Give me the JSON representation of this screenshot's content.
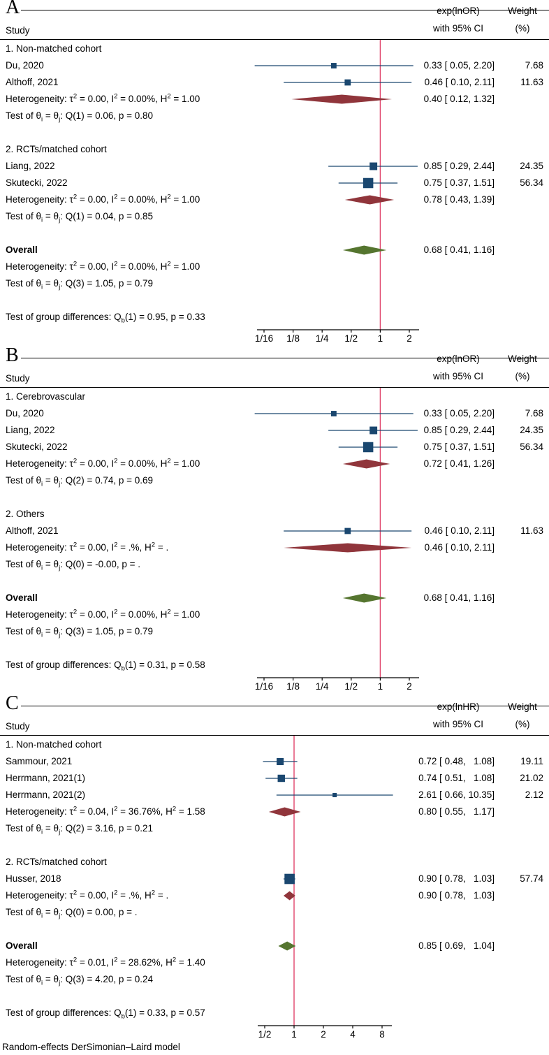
{
  "figure": {
    "footer": "Random-effects DerSimonian–Laird model"
  },
  "colors": {
    "marker": "#1a476f",
    "ci_line": "#1a476f",
    "subgroup_diamond": "#90353b",
    "overall_diamond": "#55752f",
    "ref_line": "#e0436a",
    "axis": "#000000",
    "text": "#000000",
    "background": "#ffffff"
  },
  "chart_data": [
    {
      "type": "forest",
      "panel": "A",
      "effect_measure": "exp(lnOR)",
      "headers": {
        "study": "Study",
        "effect_line1": "exp(lnOR)",
        "effect_line2": "with 95% CI",
        "weight_line1": "Weight",
        "weight_line2": "(%)"
      },
      "axis": {
        "scale": "log2",
        "ref_value": 1,
        "ticks": [
          {
            "label": "1/16",
            "value": 0.0625
          },
          {
            "label": "1/8",
            "value": 0.125
          },
          {
            "label": "1/4",
            "value": 0.25
          },
          {
            "label": "1/2",
            "value": 0.5
          },
          {
            "label": "1",
            "value": 1
          },
          {
            "label": "2",
            "value": 2
          }
        ]
      },
      "rows": [
        {
          "kind": "group",
          "text": "1. Non-matched cohort"
        },
        {
          "kind": "study",
          "name": "Du, 2020",
          "est": 0.33,
          "lo": 0.05,
          "hi": 2.2,
          "effect_text": "0.33 [ 0.05, 2.20]",
          "weight": 7.68,
          "weight_text": "7.68"
        },
        {
          "kind": "study",
          "name": "Althoff, 2021",
          "est": 0.46,
          "lo": 0.1,
          "hi": 2.11,
          "effect_text": "0.46 [ 0.10, 2.11]",
          "weight": 11.63,
          "weight_text": "11.63"
        },
        {
          "kind": "summary",
          "diamond": "subgroup",
          "text": "Heterogeneity: τ^{2} = 0.00, I^{2} = 0.00%, H^{2} = 1.00",
          "est": 0.4,
          "lo": 0.12,
          "hi": 1.32,
          "effect_text": "0.40 [ 0.12, 1.32]"
        },
        {
          "kind": "note",
          "text": "Test of θ_{i} = θ_{j}: Q(1) = 0.06, p = 0.80"
        },
        {
          "kind": "spacer"
        },
        {
          "kind": "group",
          "text": "2. RCTs/matched cohort"
        },
        {
          "kind": "study",
          "name": "Liang, 2022",
          "est": 0.85,
          "lo": 0.29,
          "hi": 2.44,
          "effect_text": "0.85 [ 0.29, 2.44]",
          "weight": 24.35,
          "weight_text": "24.35"
        },
        {
          "kind": "study",
          "name": "Skutecki, 2022",
          "est": 0.75,
          "lo": 0.37,
          "hi": 1.51,
          "effect_text": "0.75 [ 0.37, 1.51]",
          "weight": 56.34,
          "weight_text": "56.34"
        },
        {
          "kind": "summary",
          "diamond": "subgroup",
          "text": "Heterogeneity: τ^{2} = 0.00, I^{2} = 0.00%, H^{2} = 1.00",
          "est": 0.78,
          "lo": 0.43,
          "hi": 1.39,
          "effect_text": "0.78 [ 0.43, 1.39]"
        },
        {
          "kind": "note",
          "text": "Test of θ_{i} = θ_{j}: Q(1) = 0.04, p = 0.85"
        },
        {
          "kind": "spacer"
        },
        {
          "kind": "overall",
          "diamond": "overall",
          "text": "Overall",
          "est": 0.68,
          "lo": 0.41,
          "hi": 1.16,
          "effect_text": "0.68 [ 0.41, 1.16]"
        },
        {
          "kind": "note",
          "text": "Heterogeneity: τ^{2} = 0.00, I^{2} = 0.00%, H^{2} = 1.00"
        },
        {
          "kind": "note",
          "text": "Test of θ_{i} = θ_{j}: Q(3) = 1.05, p = 0.79"
        },
        {
          "kind": "spacer"
        },
        {
          "kind": "note",
          "text": "Test of group differences: Q_{b}(1) = 0.95, p = 0.33"
        }
      ]
    },
    {
      "type": "forest",
      "panel": "B",
      "effect_measure": "exp(lnOR)",
      "headers": {
        "study": "Study",
        "effect_line1": "exp(lnOR)",
        "effect_line2": "with 95% CI",
        "weight_line1": "Weight",
        "weight_line2": "(%)"
      },
      "axis": {
        "scale": "log2",
        "ref_value": 1,
        "ticks": [
          {
            "label": "1/16",
            "value": 0.0625
          },
          {
            "label": "1/8",
            "value": 0.125
          },
          {
            "label": "1/4",
            "value": 0.25
          },
          {
            "label": "1/2",
            "value": 0.5
          },
          {
            "label": "1",
            "value": 1
          },
          {
            "label": "2",
            "value": 2
          }
        ]
      },
      "rows": [
        {
          "kind": "group",
          "text": "1. Cerebrovascular"
        },
        {
          "kind": "study",
          "name": "Du, 2020",
          "est": 0.33,
          "lo": 0.05,
          "hi": 2.2,
          "effect_text": "0.33 [ 0.05, 2.20]",
          "weight": 7.68,
          "weight_text": "7.68"
        },
        {
          "kind": "study",
          "name": "Liang, 2022",
          "est": 0.85,
          "lo": 0.29,
          "hi": 2.44,
          "effect_text": "0.85 [ 0.29, 2.44]",
          "weight": 24.35,
          "weight_text": "24.35"
        },
        {
          "kind": "study",
          "name": "Skutecki, 2022",
          "est": 0.75,
          "lo": 0.37,
          "hi": 1.51,
          "effect_text": "0.75 [ 0.37, 1.51]",
          "weight": 56.34,
          "weight_text": "56.34"
        },
        {
          "kind": "summary",
          "diamond": "subgroup",
          "text": "Heterogeneity: τ^{2} = 0.00, I^{2} = 0.00%, H^{2} = 1.00",
          "est": 0.72,
          "lo": 0.41,
          "hi": 1.26,
          "effect_text": "0.72 [ 0.41, 1.26]"
        },
        {
          "kind": "note",
          "text": "Test of θ_{i} = θ_{j}: Q(2) = 0.74, p = 0.69"
        },
        {
          "kind": "spacer"
        },
        {
          "kind": "group",
          "text": "2. Others"
        },
        {
          "kind": "study",
          "name": "Althoff, 2021",
          "est": 0.46,
          "lo": 0.1,
          "hi": 2.11,
          "effect_text": "0.46 [ 0.10, 2.11]",
          "weight": 11.63,
          "weight_text": "11.63"
        },
        {
          "kind": "summary",
          "diamond": "subgroup",
          "text": "Heterogeneity: τ^{2} = 0.00, I^{2} = .%, H^{2} = .",
          "est": 0.46,
          "lo": 0.1,
          "hi": 2.11,
          "effect_text": "0.46 [ 0.10, 2.11]"
        },
        {
          "kind": "note",
          "text": "Test of θ_{i} = θ_{j}: Q(0) = -0.00, p = ."
        },
        {
          "kind": "spacer"
        },
        {
          "kind": "overall",
          "diamond": "overall",
          "text": "Overall",
          "est": 0.68,
          "lo": 0.41,
          "hi": 1.16,
          "effect_text": "0.68 [ 0.41, 1.16]"
        },
        {
          "kind": "note",
          "text": "Heterogeneity: τ^{2} = 0.00, I^{2} = 0.00%, H^{2} = 1.00"
        },
        {
          "kind": "note",
          "text": "Test of θ_{i} = θ_{j}: Q(3) = 1.05, p = 0.79"
        },
        {
          "kind": "spacer"
        },
        {
          "kind": "note",
          "text": "Test of group differences: Q_{b}(1) = 0.31, p = 0.58"
        }
      ]
    },
    {
      "type": "forest",
      "panel": "C",
      "effect_measure": "exp(lnHR)",
      "headers": {
        "study": "Study",
        "effect_line1": "exp(lnHR)",
        "effect_line2": "with 95% CI",
        "weight_line1": "Weight",
        "weight_line2": "(%)"
      },
      "axis": {
        "scale": "log2",
        "ref_value": 1,
        "ticks": [
          {
            "label": "1/2",
            "value": 0.5
          },
          {
            "label": "1",
            "value": 1
          },
          {
            "label": "2",
            "value": 2
          },
          {
            "label": "4",
            "value": 4
          },
          {
            "label": "8",
            "value": 8
          }
        ]
      },
      "rows": [
        {
          "kind": "group",
          "text": "1. Non-matched cohort"
        },
        {
          "kind": "study",
          "name": "Sammour, 2021",
          "est": 0.72,
          "lo": 0.48,
          "hi": 1.08,
          "effect_text": "0.72 [ 0.48,   1.08]",
          "weight": 19.11,
          "weight_text": "19.11"
        },
        {
          "kind": "study",
          "name": "Herrmann, 2021(1)",
          "est": 0.74,
          "lo": 0.51,
          "hi": 1.08,
          "effect_text": "0.74 [ 0.51,   1.08]",
          "weight": 21.02,
          "weight_text": "21.02"
        },
        {
          "kind": "study",
          "name": "Herrmann, 2021(2)",
          "est": 2.61,
          "lo": 0.66,
          "hi": 10.35,
          "effect_text": "2.61 [ 0.66, 10.35]",
          "weight": 2.12,
          "weight_text": "2.12"
        },
        {
          "kind": "summary",
          "diamond": "subgroup",
          "text": "Heterogeneity: τ^{2} = 0.04, I^{2} = 36.76%, H^{2} = 1.58",
          "est": 0.8,
          "lo": 0.55,
          "hi": 1.17,
          "effect_text": "0.80 [ 0.55,   1.17]"
        },
        {
          "kind": "note",
          "text": "Test of θ_{i} = θ_{j}: Q(2) = 3.16, p = 0.21"
        },
        {
          "kind": "spacer"
        },
        {
          "kind": "group",
          "text": "2. RCTs/matched cohort"
        },
        {
          "kind": "study",
          "name": "Husser, 2018",
          "est": 0.9,
          "lo": 0.78,
          "hi": 1.03,
          "effect_text": "0.90 [ 0.78,   1.03]",
          "weight": 57.74,
          "weight_text": "57.74"
        },
        {
          "kind": "summary",
          "diamond": "subgroup",
          "text": "Heterogeneity: τ^{2} = 0.00, I^{2} = .%, H^{2} = .",
          "est": 0.9,
          "lo": 0.78,
          "hi": 1.03,
          "effect_text": "0.90 [ 0.78,   1.03]"
        },
        {
          "kind": "note",
          "text": "Test of θ_{i} = θ_{j}: Q(0) = 0.00, p = ."
        },
        {
          "kind": "spacer"
        },
        {
          "kind": "overall",
          "diamond": "overall",
          "text": "Overall",
          "est": 0.85,
          "lo": 0.69,
          "hi": 1.04,
          "effect_text": "0.85 [ 0.69,   1.04]"
        },
        {
          "kind": "note",
          "text": "Heterogeneity: τ^{2} = 0.01, I^{2} = 28.62%, H^{2} = 1.40"
        },
        {
          "kind": "note",
          "text": "Test of θ_{i} = θ_{j}: Q(3) = 4.20, p = 0.24"
        },
        {
          "kind": "spacer"
        },
        {
          "kind": "note",
          "text": "Test of group differences: Q_{b}(1) = 0.33, p = 0.57"
        }
      ]
    }
  ]
}
